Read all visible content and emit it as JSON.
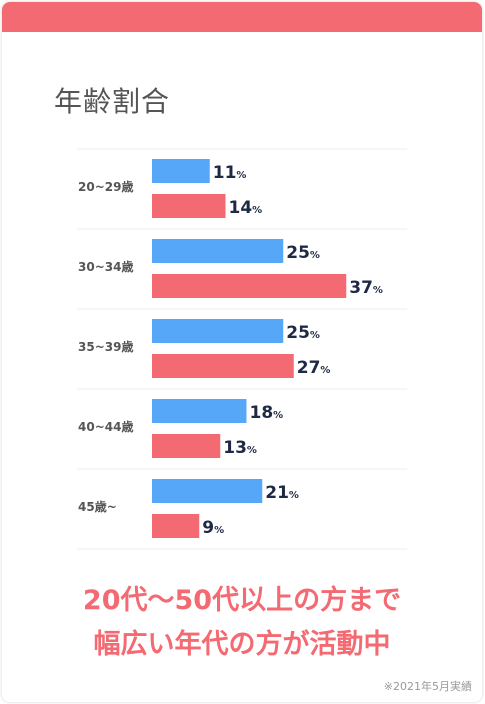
{
  "title": "年齢割合",
  "tagline_1": "20代～50代以上の方まで",
  "tagline_2": "幅広い年代の方が活動中",
  "note": "※2021年5月実績",
  "colors": {
    "accent": "#f46a72",
    "series_a": "#57a7f9",
    "series_b": "#f46a72",
    "value_text": "#1e2a44"
  },
  "chart_data": {
    "type": "bar",
    "orientation": "horizontal",
    "title": "年齢割合",
    "categories": [
      "20~29歳",
      "30~34歳",
      "35~39歳",
      "40~44歳",
      "45歳~"
    ],
    "series": [
      {
        "values": [
          11,
          25,
          25,
          18,
          21
        ],
        "color": "#57a7f9"
      },
      {
        "values": [
          14,
          37,
          27,
          13,
          9
        ],
        "color": "#f46a72"
      }
    ],
    "value_suffix": "%",
    "xlim": [
      0,
      37
    ],
    "grid": false,
    "legend": "none"
  }
}
